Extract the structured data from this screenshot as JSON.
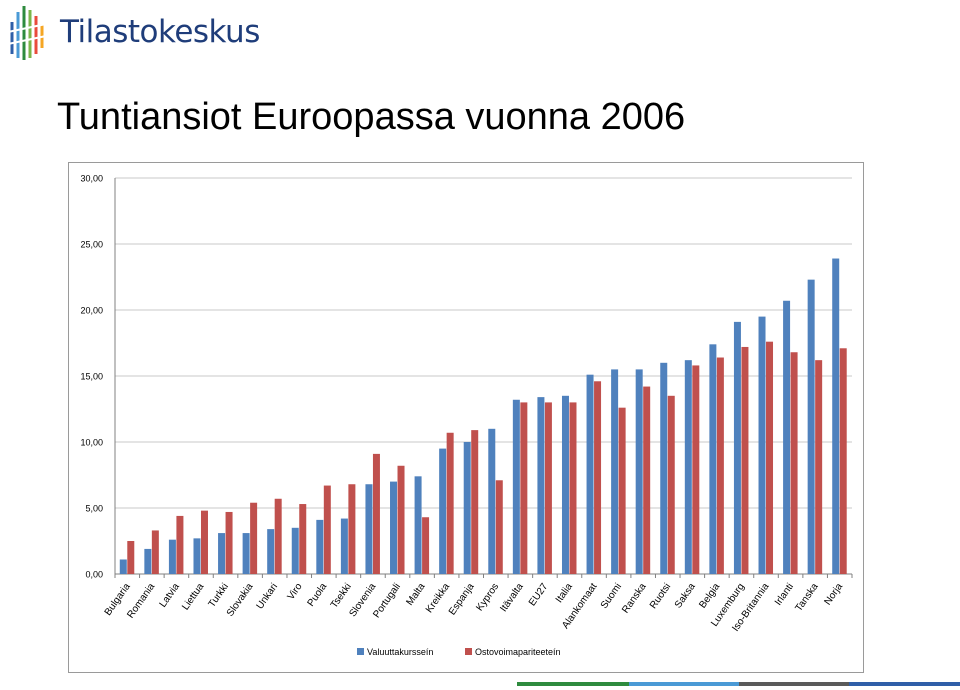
{
  "brand": {
    "name": "Tilastokeskus",
    "logo_icon": "tilastokeskus-logo-icon"
  },
  "slide": {
    "title": "Tuntiansiot Euroopassa vuonna 2006"
  },
  "colors": {
    "series1": "#4f81bd",
    "series2": "#c0504d",
    "grid": "#c8c8c8",
    "brand_text": "#1f3d7a",
    "footer": [
      "#2e8b3e",
      "#4a9ad6",
      "#5a5a5a",
      "#2f5fa8"
    ]
  },
  "chart_data": {
    "type": "bar",
    "title": "",
    "xlabel": "",
    "ylabel": "",
    "ylim": [
      0,
      30
    ],
    "yticks": [
      "0,00",
      "5,00",
      "10,00",
      "15,00",
      "20,00",
      "25,00",
      "30,00"
    ],
    "grid": true,
    "legend_position": "bottom",
    "categories": [
      "Bulgaria",
      "Romania",
      "Latvia",
      "Liettua",
      "Turkki",
      "Slovakia",
      "Unkari",
      "Viro",
      "Puola",
      "Tsekki",
      "Slovenia",
      "Portugali",
      "Malta",
      "Kreikka",
      "Espanja",
      "Kypros",
      "Itävalta",
      "EU27",
      "Italia",
      "Alankomaat",
      "Suomi",
      "Ranska",
      "Ruotsi",
      "Saksa",
      "Belgia",
      "Luxemburg",
      "Iso-Britannia",
      "Irlanti",
      "Tanska",
      "Norja"
    ],
    "series": [
      {
        "name": "Valuuttakursseín",
        "values": [
          1.1,
          1.9,
          2.6,
          2.7,
          3.1,
          3.1,
          3.4,
          3.5,
          4.1,
          4.2,
          6.8,
          7.0,
          7.4,
          9.5,
          10.0,
          11.0,
          13.2,
          13.4,
          13.5,
          15.1,
          15.5,
          15.5,
          16.0,
          16.2,
          17.4,
          19.1,
          19.5,
          20.7,
          22.3,
          23.9
        ]
      },
      {
        "name": "Ostovoimapariteeteín",
        "values": [
          2.5,
          3.3,
          4.4,
          4.8,
          4.7,
          5.4,
          5.7,
          5.3,
          6.7,
          6.8,
          9.1,
          8.2,
          4.3,
          10.7,
          10.9,
          7.1,
          13.0,
          13.0,
          13.0,
          14.6,
          12.6,
          14.2,
          13.5,
          15.8,
          16.4,
          17.2,
          17.6,
          16.8,
          16.2,
          17.1
        ]
      }
    ]
  }
}
